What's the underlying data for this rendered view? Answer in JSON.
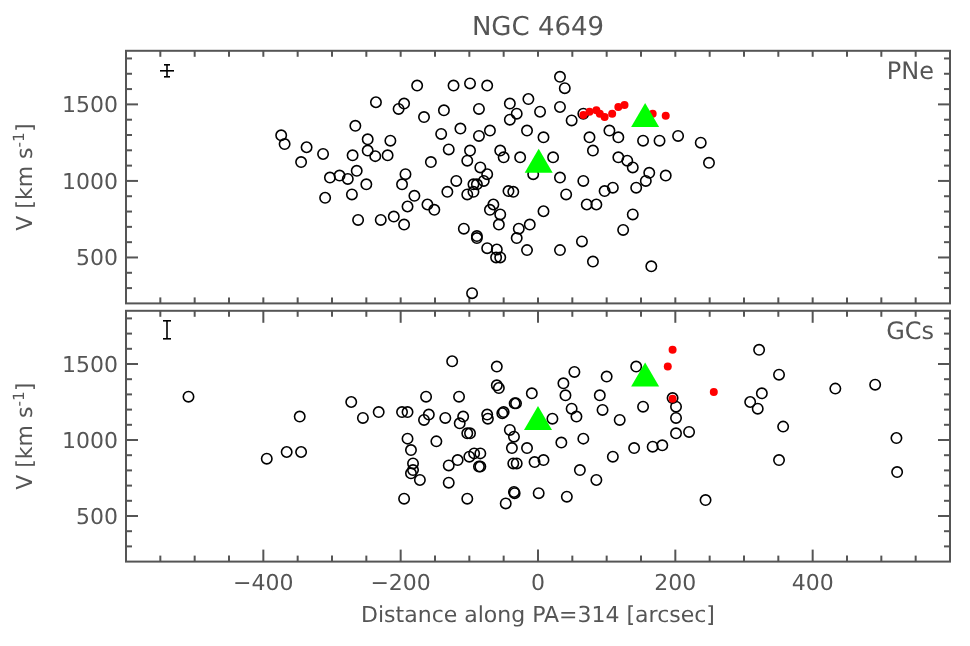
{
  "chart_data": [
    {
      "type": "scatter",
      "title": "NGC 4649",
      "ylabel": "V [km s$^{-1}$]",
      "annotations": [
        "PNe"
      ],
      "tick_labels": "y",
      "xlim": [
        -600,
        600
      ],
      "ylim": [
        200,
        1850
      ],
      "xticks": [
        {
          "value": -550,
          "label": null
        },
        {
          "value": -500,
          "label": null
        },
        {
          "value": -450,
          "label": null
        },
        {
          "value": -400,
          "label": null
        },
        {
          "value": -350,
          "label": null
        },
        {
          "value": -300,
          "label": null
        },
        {
          "value": -250,
          "label": null
        },
        {
          "value": -200,
          "label": null
        },
        {
          "value": -150,
          "label": null
        },
        {
          "value": -100,
          "label": null
        },
        {
          "value": -50,
          "label": null
        },
        {
          "value": 0,
          "label": null
        },
        {
          "value": 50,
          "label": null
        },
        {
          "value": 100,
          "label": null
        },
        {
          "value": 150,
          "label": null
        },
        {
          "value": 200,
          "label": null
        },
        {
          "value": 250,
          "label": null
        },
        {
          "value": 300,
          "label": null
        },
        {
          "value": 350,
          "label": null
        },
        {
          "value": 400,
          "label": null
        },
        {
          "value": 450,
          "label": null
        },
        {
          "value": 500,
          "label": null
        },
        {
          "value": 550,
          "label": null
        }
      ],
      "yticks": [
        {
          "value": 300,
          "label": null
        },
        {
          "value": 400,
          "label": null
        },
        500,
        {
          "value": 600,
          "label": null
        },
        {
          "value": 700,
          "label": null
        },
        {
          "value": 800,
          "label": null
        },
        {
          "value": 900,
          "label": null
        },
        1000,
        {
          "value": 1100,
          "label": null
        },
        {
          "value": 1200,
          "label": null
        },
        {
          "value": 1300,
          "label": null
        },
        {
          "value": 1400,
          "label": null
        },
        1500,
        {
          "value": 1600,
          "label": null
        },
        {
          "value": 1700,
          "label": null
        },
        {
          "value": 1800,
          "label": null
        }
      ],
      "series": [
        {
          "color": "#000000",
          "marker": "circle",
          "x": [
            -374,
            -369,
            -345,
            -337,
            -313,
            -310,
            -303,
            -289,
            -277,
            -271,
            -270,
            -264,
            -262,
            -266,
            -250,
            -248,
            -236,
            -248,
            -237,
            -229,
            -219,
            -215,
            -210,
            -203,
            -198,
            -195,
            -195,
            -193,
            -190,
            -180,
            -176,
            -166,
            -161,
            -156,
            -151,
            -141,
            -137,
            -132,
            -130,
            -123,
            -119,
            -113,
            -108,
            -103,
            -99,
            -96,
            -94,
            -89,
            -86,
            -74,
            -74,
            -65,
            -60,
            -55,
            -55,
            -50,
            -41,
            -36,
            -28,
            -89,
            -79,
            -86,
            -70,
            -41,
            -14,
            -31,
            3,
            32,
            39,
            32,
            49,
            66,
            75,
            80,
            104,
            117,
            117,
            130,
            138,
            153,
            177,
            204,
            237,
            249,
            186,
            162,
            157,
            143,
            109,
            97,
            85,
            71,
            66,
            138,
            124,
            64,
            32,
            80,
            165,
            -16,
            -31,
            -61,
            -74,
            -89,
            8,
            -12,
            -57,
            -70,
            -43,
            -103,
            -84,
            -55,
            -26,
            22,
            32,
            41,
            -7,
            -94,
            -99,
            8,
            -16
          ],
          "values": [
            1298,
            1241,
            1123,
            1220,
            1176,
            890,
            1022,
            1035,
            1013,
            912,
            1167,
            1066,
            745,
            1360,
            978,
            1272,
            1514,
            1198,
            1162,
            745,
            1167,
            1263,
            767,
            1470,
            978,
            1505,
            715,
            1044,
            833,
            903,
            1623,
            1417,
            846,
            1123,
            811,
            1307,
            1461,
            929,
            1206,
            1623,
            1000,
            1342,
            688,
            1132,
            1637,
            267,
            929,
            640,
            1294,
            1623,
            1044,
            846,
            552,
            500,
            781,
            1154,
            1400,
            929,
            688,
            978,
            1000,
            1470,
            1329,
            1505,
            1535,
            1439,
            1452,
            1680,
            1606,
            1483,
            1395,
            1439,
            1285,
            1198,
            1329,
            1285,
            1154,
            1132,
            1088,
            1263,
            1263,
            1294,
            1250,
            1118,
            1035,
            1053,
            1000,
            956,
            956,
            934,
            846,
            846,
            1000,
            781,
            680,
            605,
            548,
            473,
            442,
            548,
            627,
            500,
            561,
            627,
            802,
            715,
            715,
            811,
            934,
            912,
            1088,
            1198,
            1154,
            1154,
            1022,
            912,
            1044,
            978,
            1198,
            1285,
            1329
          ]
        },
        {
          "color": "#ff0000",
          "marker": "circle",
          "x": [
            66,
            75,
            85,
            90,
            97,
            108,
            117,
            126,
            167,
            186
          ],
          "values": [
            1430,
            1452,
            1461,
            1439,
            1417,
            1439,
            1483,
            1496,
            1439,
            1426
          ]
        },
        {
          "color": "#00ff00",
          "marker": "triangle",
          "x": [
            1,
            156
          ],
          "values": [
            1118,
            1417
          ]
        }
      ]
    },
    {
      "type": "scatter",
      "xlabel": "Distance along PA=314 [arcsec]",
      "ylabel": "V [km s$^{-1}$]",
      "annotations": [
        "GCs"
      ],
      "xlim": [
        -600,
        600
      ],
      "ylim": [
        200,
        1850
      ],
      "xticks": [
        {
          "value": -550,
          "label": null
        },
        {
          "value": -500,
          "label": null
        },
        {
          "value": -450,
          "label": null
        },
        -400,
        {
          "value": -350,
          "label": null
        },
        {
          "value": -300,
          "label": null
        },
        {
          "value": -250,
          "label": null
        },
        -200,
        {
          "value": -150,
          "label": null
        },
        {
          "value": -100,
          "label": null
        },
        {
          "value": -50,
          "label": null
        },
        0,
        {
          "value": 50,
          "label": null
        },
        {
          "value": 100,
          "label": null
        },
        {
          "value": 150,
          "label": null
        },
        200,
        {
          "value": 250,
          "label": null
        },
        {
          "value": 300,
          "label": null
        },
        {
          "value": 350,
          "label": null
        },
        400,
        {
          "value": 450,
          "label": null
        },
        {
          "value": 500,
          "label": null
        },
        {
          "value": 550,
          "label": null
        }
      ],
      "yticks": [
        {
          "value": 300,
          "label": null
        },
        {
          "value": 400,
          "label": null
        },
        500,
        {
          "value": 600,
          "label": null
        },
        {
          "value": 700,
          "label": null
        },
        {
          "value": 800,
          "label": null
        },
        {
          "value": 900,
          "label": null
        },
        1000,
        {
          "value": 1100,
          "label": null
        },
        {
          "value": 1200,
          "label": null
        },
        {
          "value": 1300,
          "label": null
        },
        {
          "value": 1400,
          "label": null
        },
        1500,
        {
          "value": 1600,
          "label": null
        },
        {
          "value": 1700,
          "label": null
        },
        {
          "value": 1800,
          "label": null
        }
      ],
      "series": [
        {
          "color": "#000000",
          "marker": "circle",
          "x": [
            -509,
            -395,
            -366,
            -345,
            -347,
            -272,
            -255,
            -232,
            -198,
            -190,
            -190,
            -185,
            -182,
            -185,
            -182,
            -172,
            -195,
            -163,
            -166,
            -159,
            -148,
            -135,
            -130,
            -130,
            -125,
            -117,
            -115,
            -114,
            -109,
            -103,
            -103,
            -100,
            -93,
            -84,
            -86,
            -73,
            -60,
            -57,
            -52,
            -47,
            -35,
            -35,
            -32,
            -31,
            -99,
            -84,
            -74,
            -60,
            -50,
            -41,
            -38,
            -36,
            -34,
            -34,
            -16,
            -9,
            -5,
            1,
            8,
            21,
            34,
            37,
            40,
            42,
            49,
            53,
            56,
            61,
            66,
            85,
            90,
            94,
            100,
            109,
            119,
            140,
            143,
            153,
            167,
            181,
            201,
            201,
            201,
            196,
            220,
            244,
            309,
            320,
            326,
            322,
            351,
            357,
            351,
            433,
            491,
            522,
            523
          ],
          "values": [
            1285,
            877,
            921,
            921,
            1154,
            1250,
            1145,
            1184,
            1184,
            1184,
            1009,
            934,
            802,
            781,
            846,
            737,
            614,
            1285,
            1132,
            1167,
            991,
            1145,
            833,
            719,
            1518,
            868,
            1285,
            1110,
            1154,
            1044,
            614,
            890,
            912,
            912,
            825,
            1140,
            1483,
            1342,
            1176,
            583,
            658,
            1022,
            1241,
            846,
            1044,
            825,
            1167,
            1360,
            1184,
            1066,
            947,
            846,
            1241,
            650,
            947,
            1307,
            855,
            650,
            868,
            1140,
            983,
            1373,
            1294,
            627,
            1206,
            1448,
            1154,
            802,
            1009,
            737,
            1294,
            1198,
            1417,
            890,
            1132,
            947,
            1483,
            1219,
            956,
            965,
            1219,
            1145,
            1044,
            1276,
            1053,
            605,
            1250,
            1206,
            1307,
            1593,
            1430,
            1088,
            868,
            1338,
            1364,
            1013,
            789
          ]
        },
        {
          "color": "#ff0000",
          "marker": "circle",
          "x": [
            196,
            189,
            196,
            256
          ],
          "values": [
            1593,
            1483,
            1272,
            1316
          ]
        },
        {
          "color": "#00ff00",
          "marker": "triangle",
          "x": [
            0,
            156
          ],
          "values": [
            1132,
            1417
          ]
        }
      ]
    }
  ]
}
